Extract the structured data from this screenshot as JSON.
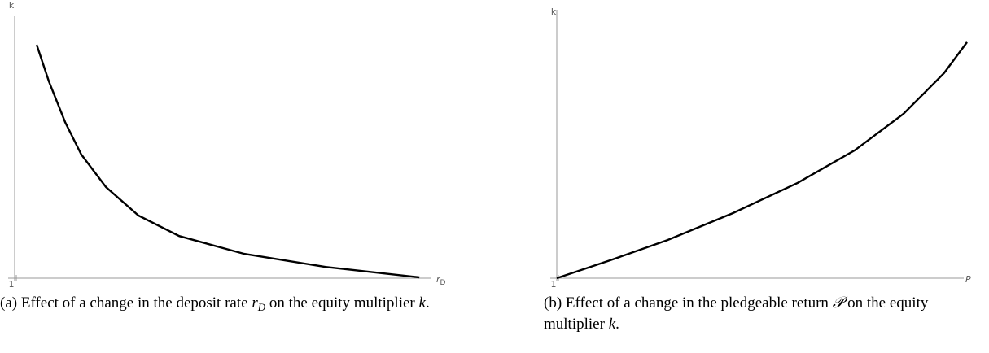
{
  "chart_data": [
    {
      "type": "line",
      "y_label": "k",
      "x_label": [
        {
          "text": "r"
        },
        {
          "text": "D",
          "style": "sub"
        }
      ],
      "x": [
        1.053,
        1.082,
        1.121,
        1.16,
        1.219,
        1.297,
        1.395,
        1.551,
        1.746,
        1.971
      ],
      "values": [
        8.91,
        7.52,
        5.96,
        4.72,
        3.48,
        2.39,
        1.61,
        0.93,
        0.43,
        0.03
      ],
      "color": "#000000",
      "xlim": [
        1,
        2
      ],
      "ylim": [
        0,
        10
      ],
      "xticks": [
        1
      ],
      "caption": [
        {
          "text": "(a) Effect of a change in the deposit rate "
        },
        {
          "text": "r",
          "style": "italic"
        },
        {
          "text": "D",
          "style": "sub"
        },
        {
          "text": " on the equity multiplier "
        },
        {
          "text": "k",
          "style": "italic"
        },
        {
          "text": "."
        }
      ]
    },
    {
      "type": "line",
      "y_label": "k",
      "x_label": [
        {
          "text": "P"
        }
      ],
      "x": [
        1,
        1.131,
        1.27,
        1.429,
        1.587,
        1.726,
        1.845,
        1.944,
        2.0
      ],
      "values": [
        0,
        0.67,
        1.42,
        2.42,
        3.55,
        4.76,
        6.12,
        7.64,
        8.79
      ],
      "color": "#000000",
      "xlim": [
        1,
        2
      ],
      "ylim": [
        0,
        10
      ],
      "xticks": [
        1
      ],
      "caption": [
        {
          "text": "(b) Effect of a change in the pledgeable return "
        },
        {
          "text": "𝒫",
          "style": "italic"
        },
        {
          "text": " on the equity multiplier "
        },
        {
          "text": "k",
          "style": "italic"
        },
        {
          "text": "."
        }
      ]
    }
  ]
}
